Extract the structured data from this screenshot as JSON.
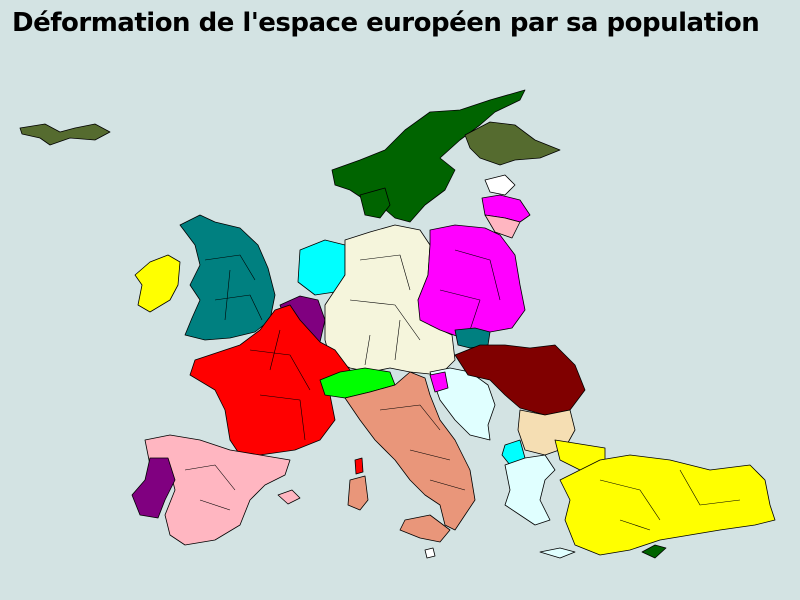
{
  "title": "Déformation de l'espace européen par sa population"
}
